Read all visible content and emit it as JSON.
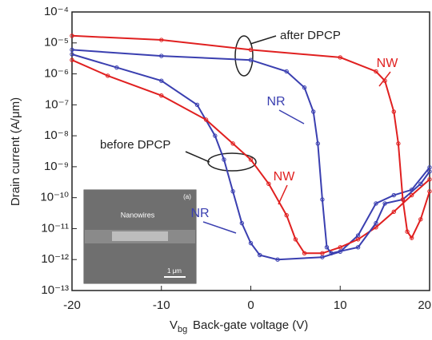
{
  "chart_data": {
    "type": "line",
    "ylabel": "Drain current (A/μm)",
    "xlabel_symbol": "V",
    "xlabel_subscript": "bg",
    "xlabel": "Back-gate voltage (V)",
    "log_y": true,
    "xlim": [
      -20,
      20
    ],
    "xticks": [
      -20,
      -10,
      0,
      10,
      20
    ],
    "ylim": [
      1e-13,
      0.0001
    ],
    "yticks": [
      {
        "value": 1e-13,
        "label": "10⁻¹³"
      },
      {
        "value": 1e-12,
        "label": "10⁻¹²"
      },
      {
        "value": 1e-11,
        "label": "10⁻¹¹"
      },
      {
        "value": 1e-10,
        "label": "10⁻¹⁰"
      },
      {
        "value": 1e-09,
        "label": "10⁻⁹"
      },
      {
        "value": 1e-08,
        "label": "10⁻⁸"
      },
      {
        "value": 1e-07,
        "label": "10⁻⁷"
      },
      {
        "value": 1e-06,
        "label": "10⁻⁶"
      },
      {
        "value": 1e-05,
        "label": "10⁻⁵"
      },
      {
        "value": 0.0001,
        "label": "10⁻⁴"
      }
    ],
    "series": [
      {
        "name": "NR",
        "color": "#3a3fb0",
        "x": [
          -20,
          -15,
          -10,
          -6,
          -4,
          -3,
          -2,
          -1,
          0,
          1,
          3,
          8,
          10,
          12,
          14,
          16,
          18,
          20
        ],
        "values": [
          4.3e-06,
          1.6e-06,
          6e-07,
          1e-07,
          1e-08,
          1.7e-09,
          1.6e-10,
          1.5e-11,
          3.4e-12,
          1.4e-12,
          1e-12,
          1.2e-12,
          1.8e-12,
          6e-12,
          6.5e-11,
          1.2e-10,
          1.8e-10,
          9.5e-10
        ]
      },
      {
        "name": "NW",
        "color": "#e02020",
        "x": [
          -20,
          -16,
          -10,
          -5,
          -2,
          0,
          2,
          4,
          5,
          6,
          8,
          10,
          12,
          14,
          16,
          18,
          20
        ],
        "values": [
          2.8e-06,
          8.7e-07,
          2e-07,
          3.3e-08,
          5.6e-09,
          1.7e-09,
          2.8e-10,
          2.7e-11,
          4.5e-12,
          1.6e-12,
          1.6e-12,
          2.5e-12,
          4.5e-12,
          1.1e-11,
          3.5e-11,
          1.2e-10,
          3.9e-10
        ]
      },
      {
        "name": "NR",
        "color": "#3a3fb0",
        "x": [
          -20,
          -10,
          0,
          4,
          6,
          7,
          7.5,
          8,
          8.5,
          9,
          12,
          14,
          15,
          17,
          19,
          20
        ],
        "values": [
          6e-06,
          3.8e-06,
          2.8e-06,
          1.2e-06,
          3.6e-07,
          6e-08,
          5.6e-09,
          8.7e-11,
          2.5e-12,
          1.6e-12,
          2.5e-12,
          1.5e-11,
          6.5e-11,
          8.7e-11,
          2.8e-10,
          7e-10
        ]
      },
      {
        "name": "NW",
        "color": "#e02020",
        "x": [
          -20,
          -10,
          0,
          10,
          14,
          15,
          16,
          16.5,
          17,
          17.5,
          18,
          19,
          20
        ],
        "values": [
          1.7e-05,
          1.25e-05,
          6e-06,
          3.4e-06,
          1.2e-06,
          6e-07,
          6e-08,
          5.6e-09,
          8.7e-11,
          8e-12,
          5e-12,
          2e-11,
          1.6e-10
        ]
      }
    ],
    "annotations": [
      "after DPCP",
      "before DPCP"
    ],
    "inset": {
      "label": "Nanowires",
      "scale": "1 μm",
      "panel": "(a)"
    }
  }
}
